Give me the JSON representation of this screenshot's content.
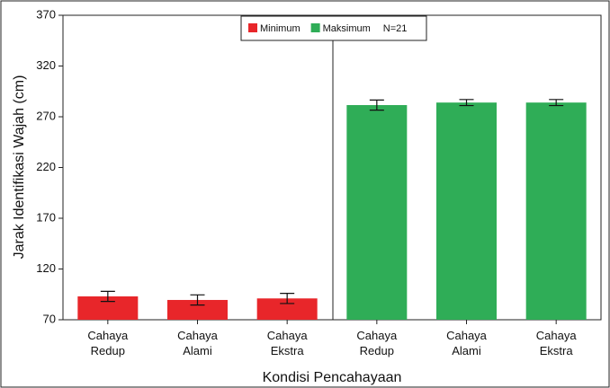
{
  "chart_data": {
    "type": "bar",
    "x_label": "Kondisi Pencahayaan",
    "y_label": "Jarak Identifikasi Wajah (cm)",
    "annotation": "N=21",
    "categories": [
      "Cahaya Redup",
      "Cahaya Alami",
      "Cahaya Ekstra",
      "Cahaya Redup",
      "Cahaya Alami",
      "Cahaya Ekstra"
    ],
    "series": [
      {
        "name": "Minimum",
        "color": "#e8262a",
        "values": [
          93,
          89.5,
          91,
          null,
          null,
          null
        ],
        "errors": [
          5,
          5,
          5,
          null,
          null,
          null
        ]
      },
      {
        "name": "Maksimum",
        "color": "#2fad57",
        "values": [
          null,
          null,
          null,
          281.5,
          284,
          284
        ],
        "errors": [
          null,
          null,
          null,
          5,
          3,
          3
        ]
      }
    ],
    "ylim": [
      70,
      370
    ],
    "yticks": [
      70,
      120,
      170,
      220,
      270,
      320,
      370
    ],
    "legend": "top"
  }
}
